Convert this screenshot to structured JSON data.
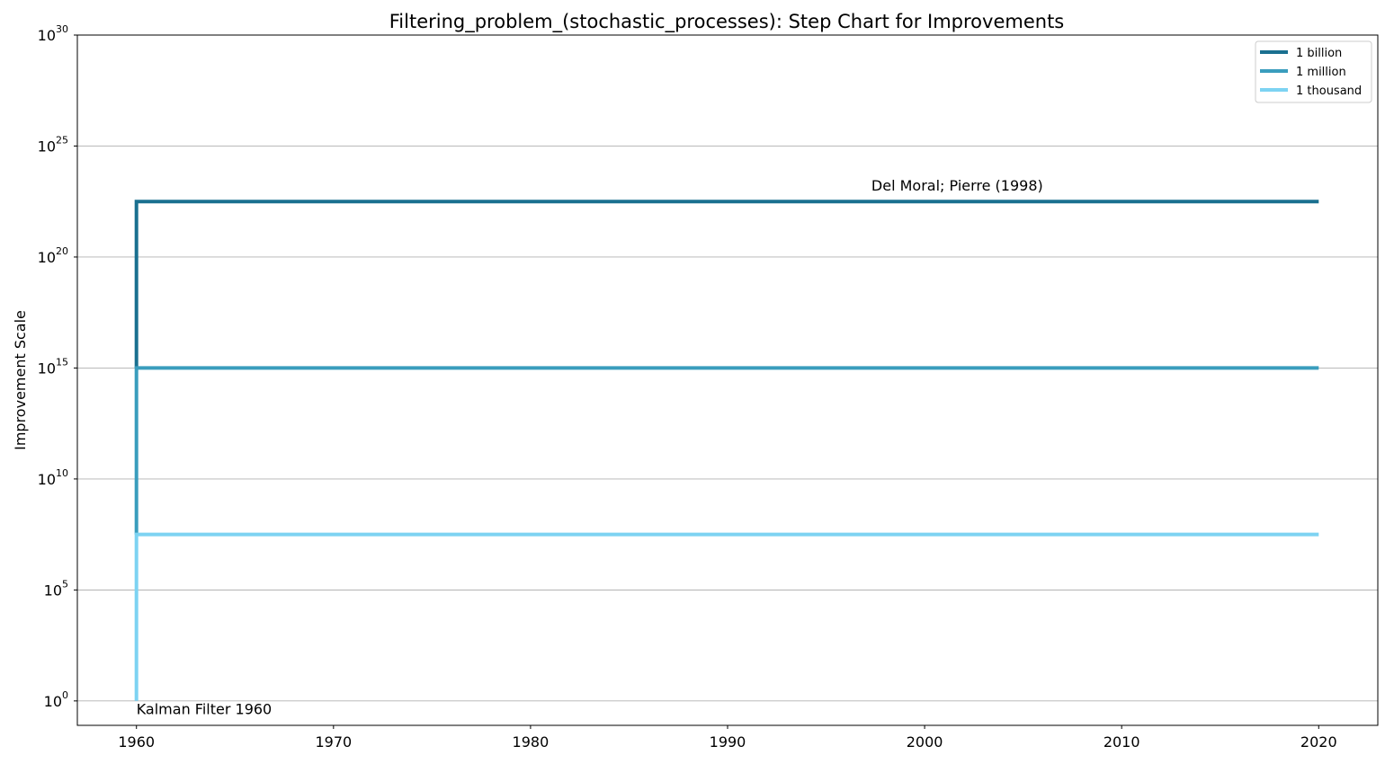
{
  "chart_data": {
    "type": "line",
    "step": true,
    "title": "Filtering_problem_(stochastic_processes): Step Chart for Improvements",
    "xlabel": "",
    "ylabel": "Improvement Scale",
    "xlim": [
      1957,
      2023
    ],
    "x_ticks": [
      "1960",
      "1970",
      "1980",
      "1990",
      "2000",
      "2010",
      "2020"
    ],
    "yscale": "log",
    "ylim_exp": [
      -1.1,
      30
    ],
    "y_ticks": [
      {
        "base": "10",
        "exp": "0"
      },
      {
        "base": "10",
        "exp": "5"
      },
      {
        "base": "10",
        "exp": "10"
      },
      {
        "base": "10",
        "exp": "15"
      },
      {
        "base": "10",
        "exp": "20"
      },
      {
        "base": "10",
        "exp": "25"
      },
      {
        "base": "10",
        "exp": "30"
      }
    ],
    "grid": "horizontal",
    "legend_position": "top-right",
    "series": [
      {
        "name": "1 billion",
        "color": "#1a7090",
        "x": [
          1960,
          1960,
          2020
        ],
        "y_exp": [
          15,
          22.5,
          22.5
        ]
      },
      {
        "name": "1 million",
        "color": "#3a9dbd",
        "x": [
          1960,
          1960,
          2020
        ],
        "y_exp": [
          7.5,
          15,
          15
        ]
      },
      {
        "name": "1 thousand",
        "color": "#7dd3f2",
        "x": [
          1960,
          1960,
          2020
        ],
        "y_exp": [
          0,
          7.5,
          7.5
        ]
      }
    ],
    "annotations": [
      {
        "text": "Del Moral; Pierre (1998)",
        "x": 1997.3,
        "y_exp": 23.0
      },
      {
        "text": "Kalman Filter 1960",
        "x": 1960,
        "y_exp": -0.6
      }
    ]
  }
}
